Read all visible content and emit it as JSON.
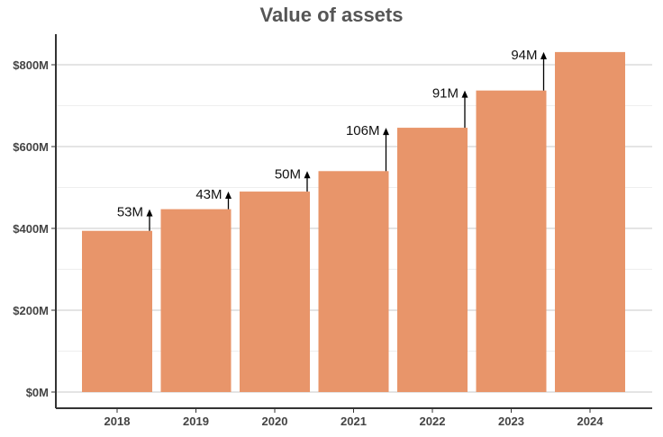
{
  "chart_data": {
    "type": "bar",
    "title": "Value of assets",
    "xlabel": "",
    "ylabel": "",
    "categories": [
      "2018",
      "2019",
      "2020",
      "2021",
      "2022",
      "2023",
      "2024"
    ],
    "values": [
      394,
      447,
      490,
      540,
      646,
      737,
      831
    ],
    "ylim": [
      0,
      870
    ],
    "yticks": [
      0,
      200,
      400,
      600,
      800
    ],
    "ytick_labels": [
      "$0M",
      "$200M",
      "$400M",
      "$600M",
      "$800M"
    ],
    "grid": true,
    "bar_color": "#E8956A",
    "annotations": [
      {
        "category": "2018",
        "label": "53M"
      },
      {
        "category": "2019",
        "label": "43M"
      },
      {
        "category": "2020",
        "label": "50M"
      },
      {
        "category": "2021",
        "label": "106M"
      },
      {
        "category": "2022",
        "label": "91M"
      },
      {
        "category": "2023",
        "label": "94M"
      }
    ]
  }
}
